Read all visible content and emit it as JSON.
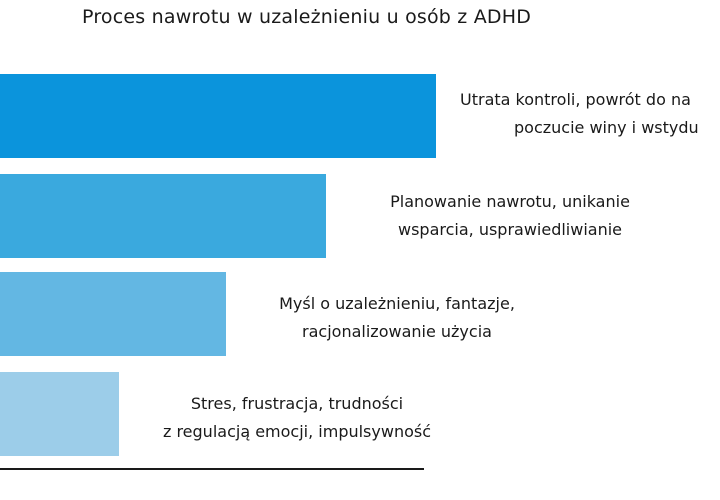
{
  "title": "Proces nawrotu w uzależnieniu u osób z ADHD",
  "steps": [
    {
      "line1": "Utrata kontroli, powrót do na",
      "line2": "poczucie winy i wstydu",
      "color": "#0b94dc"
    },
    {
      "line1": "Planowanie nawrotu, unikanie",
      "line2": "wsparcia, usprawiedliwianie",
      "color": "#3aa9de"
    },
    {
      "line1": "Myśl o uzależnieniu, fantazje,",
      "line2": "racjonalizowanie użycia",
      "color": "#63b7e3"
    },
    {
      "line1": "Stres, frustracja, trudności",
      "line2": "z regulacją emocji, impulsywność",
      "color": "#9ccde9"
    }
  ]
}
